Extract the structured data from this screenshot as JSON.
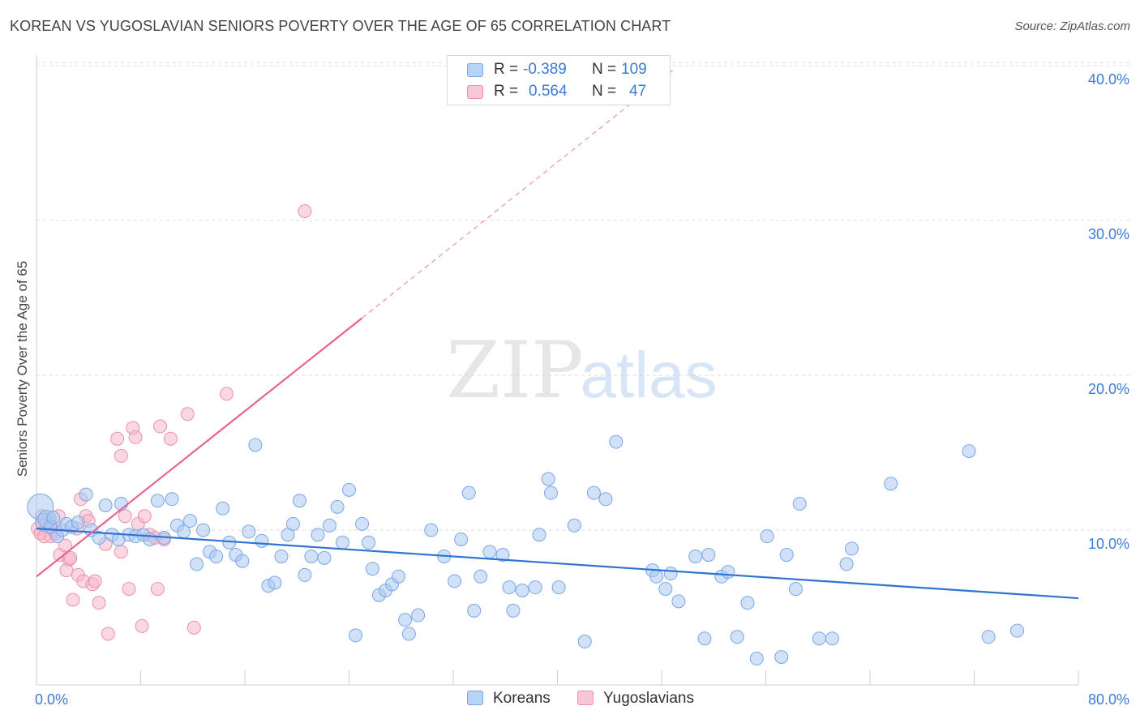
{
  "header": {
    "title": "KOREAN VS YUGOSLAVIAN SENIORS POVERTY OVER THE AGE OF 65 CORRELATION CHART",
    "source": "Source: ZipAtlas.com"
  },
  "watermark": {
    "zip": "ZIP",
    "atlas": "atlas"
  },
  "legend_top": {
    "rows": [
      {
        "r_label": "R =",
        "r_value": "-0.389",
        "n_label": "N =",
        "n_value": "109"
      },
      {
        "r_label": "R =",
        "r_value": "0.564",
        "n_label": "N =",
        "n_value": "47"
      }
    ]
  },
  "legend_bottom": {
    "koreans": "Koreans",
    "yugoslavians": "Yugoslavians"
  },
  "colors": {
    "blue_fill": "#a9c8f2",
    "blue_stroke": "#7aa7e6",
    "blue_line": "#2f74d0",
    "pink_fill": "#f6b8ca",
    "pink_stroke": "#ee8fab",
    "pink_line": "#e8638e",
    "tick_label": "#3d7bd9",
    "grid": "#dddddd"
  },
  "chart_data": {
    "type": "scatter",
    "title": "KOREAN VS YUGOSLAVIAN SENIORS POVERTY OVER THE AGE OF 65 CORRELATION CHART",
    "xlabel": "",
    "ylabel": "Seniors Poverty Over the Age of 65",
    "xlim": [
      0,
      80
    ],
    "ylim": [
      0,
      42
    ],
    "x_tick_labels": [
      "0.0%",
      "80.0%"
    ],
    "y_ticks": [
      10,
      20,
      30,
      40
    ],
    "y_tick_labels": [
      "10.0%",
      "20.0%",
      "30.0%",
      "40.0%"
    ],
    "grid": "horizontal dashed",
    "legend": "top-center",
    "series": [
      {
        "name": "Koreans",
        "color": "#a9c8f2",
        "r": -0.389,
        "n": 109,
        "trend": {
          "x": [
            0,
            80
          ],
          "y": [
            10.1,
            5.6
          ]
        },
        "points": [
          [
            0.3,
            11.5
          ],
          [
            0.6,
            10.5
          ],
          [
            0.8,
            10.7
          ],
          [
            1.1,
            10.2
          ],
          [
            1.3,
            10.8
          ],
          [
            1.6,
            9.6
          ],
          [
            2.0,
            10.0
          ],
          [
            2.3,
            10.4
          ],
          [
            2.7,
            10.2
          ],
          [
            3.2,
            10.5
          ],
          [
            3.8,
            12.3
          ],
          [
            4.2,
            10.0
          ],
          [
            4.8,
            9.5
          ],
          [
            5.3,
            11.6
          ],
          [
            5.8,
            9.7
          ],
          [
            6.3,
            9.4
          ],
          [
            6.5,
            11.7
          ],
          [
            7.1,
            9.7
          ],
          [
            7.6,
            9.6
          ],
          [
            8.2,
            9.7
          ],
          [
            8.7,
            9.4
          ],
          [
            9.3,
            11.9
          ],
          [
            9.8,
            9.5
          ],
          [
            10.4,
            12.0
          ],
          [
            10.8,
            10.3
          ],
          [
            11.3,
            9.9
          ],
          [
            11.8,
            10.6
          ],
          [
            12.3,
            7.8
          ],
          [
            12.8,
            10.0
          ],
          [
            13.3,
            8.6
          ],
          [
            13.8,
            8.3
          ],
          [
            14.3,
            11.4
          ],
          [
            14.8,
            9.2
          ],
          [
            15.3,
            8.4
          ],
          [
            15.8,
            8.0
          ],
          [
            16.3,
            9.9
          ],
          [
            16.8,
            15.5
          ],
          [
            17.3,
            9.3
          ],
          [
            17.8,
            6.4
          ],
          [
            18.3,
            6.6
          ],
          [
            18.8,
            8.3
          ],
          [
            19.3,
            9.7
          ],
          [
            19.7,
            10.4
          ],
          [
            20.2,
            11.9
          ],
          [
            20.6,
            7.1
          ],
          [
            21.1,
            8.3
          ],
          [
            21.6,
            9.7
          ],
          [
            22.1,
            8.2
          ],
          [
            22.5,
            10.3
          ],
          [
            23.1,
            11.5
          ],
          [
            23.5,
            9.2
          ],
          [
            24.0,
            12.6
          ],
          [
            24.5,
            3.2
          ],
          [
            25.0,
            10.4
          ],
          [
            25.5,
            9.2
          ],
          [
            25.8,
            7.5
          ],
          [
            26.3,
            5.8
          ],
          [
            26.8,
            6.1
          ],
          [
            27.3,
            6.5
          ],
          [
            27.8,
            7.0
          ],
          [
            28.3,
            4.2
          ],
          [
            28.6,
            3.3
          ],
          [
            29.3,
            4.5
          ],
          [
            30.3,
            10.0
          ],
          [
            31.3,
            8.3
          ],
          [
            32.1,
            6.7
          ],
          [
            32.6,
            9.4
          ],
          [
            33.2,
            12.4
          ],
          [
            33.6,
            4.8
          ],
          [
            34.1,
            7.0
          ],
          [
            34.8,
            8.6
          ],
          [
            35.8,
            8.4
          ],
          [
            36.3,
            6.3
          ],
          [
            36.6,
            4.8
          ],
          [
            37.3,
            6.1
          ],
          [
            38.3,
            6.3
          ],
          [
            38.6,
            9.7
          ],
          [
            39.3,
            13.3
          ],
          [
            39.5,
            12.4
          ],
          [
            40.1,
            6.3
          ],
          [
            41.3,
            10.3
          ],
          [
            42.1,
            2.8
          ],
          [
            42.8,
            12.4
          ],
          [
            43.7,
            12.0
          ],
          [
            44.5,
            15.7
          ],
          [
            47.3,
            7.4
          ],
          [
            47.6,
            7.0
          ],
          [
            48.3,
            6.2
          ],
          [
            48.7,
            7.2
          ],
          [
            49.3,
            5.4
          ],
          [
            50.6,
            8.3
          ],
          [
            51.3,
            3.0
          ],
          [
            51.6,
            8.4
          ],
          [
            52.6,
            7.0
          ],
          [
            53.1,
            7.3
          ],
          [
            53.8,
            3.1
          ],
          [
            54.6,
            5.3
          ],
          [
            55.3,
            1.7
          ],
          [
            56.1,
            9.6
          ],
          [
            57.2,
            1.8
          ],
          [
            57.6,
            8.4
          ],
          [
            58.3,
            6.2
          ],
          [
            58.6,
            11.7
          ],
          [
            60.1,
            3.0
          ],
          [
            61.1,
            3.0
          ],
          [
            62.2,
            7.8
          ],
          [
            62.6,
            8.8
          ],
          [
            65.6,
            13.0
          ],
          [
            71.6,
            15.1
          ],
          [
            73.1,
            3.1
          ],
          [
            75.3,
            3.5
          ]
        ]
      },
      {
        "name": "Yugoslavians",
        "color": "#f6b8ca",
        "r": 0.564,
        "n": 47,
        "trend": {
          "x": [
            0,
            25
          ],
          "y": [
            7.0,
            23.7
          ]
        },
        "trend_extension": {
          "x": [
            25,
            49
          ],
          "y": [
            23.7,
            39.8
          ]
        },
        "points": [
          [
            0.1,
            10.1
          ],
          [
            0.3,
            9.8
          ],
          [
            0.4,
            10.9
          ],
          [
            0.6,
            9.6
          ],
          [
            0.8,
            10.5
          ],
          [
            1.0,
            10.3
          ],
          [
            1.1,
            9.6
          ],
          [
            1.3,
            10.0
          ],
          [
            1.5,
            9.8
          ],
          [
            1.7,
            10.9
          ],
          [
            1.8,
            8.4
          ],
          [
            2.2,
            9.0
          ],
          [
            2.3,
            7.4
          ],
          [
            2.5,
            8.1
          ],
          [
            2.6,
            8.2
          ],
          [
            2.8,
            5.5
          ],
          [
            3.1,
            10.1
          ],
          [
            3.2,
            7.1
          ],
          [
            3.4,
            12.0
          ],
          [
            3.6,
            6.7
          ],
          [
            3.8,
            10.9
          ],
          [
            4.0,
            10.6
          ],
          [
            4.3,
            6.5
          ],
          [
            4.5,
            6.7
          ],
          [
            4.8,
            5.3
          ],
          [
            5.3,
            9.1
          ],
          [
            5.5,
            3.3
          ],
          [
            6.2,
            15.9
          ],
          [
            6.5,
            8.6
          ],
          [
            6.5,
            14.8
          ],
          [
            6.8,
            10.9
          ],
          [
            7.1,
            6.2
          ],
          [
            7.4,
            16.6
          ],
          [
            7.6,
            16.0
          ],
          [
            7.8,
            10.4
          ],
          [
            8.1,
            3.8
          ],
          [
            8.3,
            10.9
          ],
          [
            8.7,
            9.7
          ],
          [
            9.1,
            9.5
          ],
          [
            9.3,
            6.2
          ],
          [
            9.5,
            16.7
          ],
          [
            9.8,
            9.4
          ],
          [
            10.3,
            15.9
          ],
          [
            11.6,
            17.5
          ],
          [
            12.1,
            3.7
          ],
          [
            14.6,
            18.8
          ],
          [
            20.6,
            30.6
          ]
        ]
      }
    ]
  }
}
